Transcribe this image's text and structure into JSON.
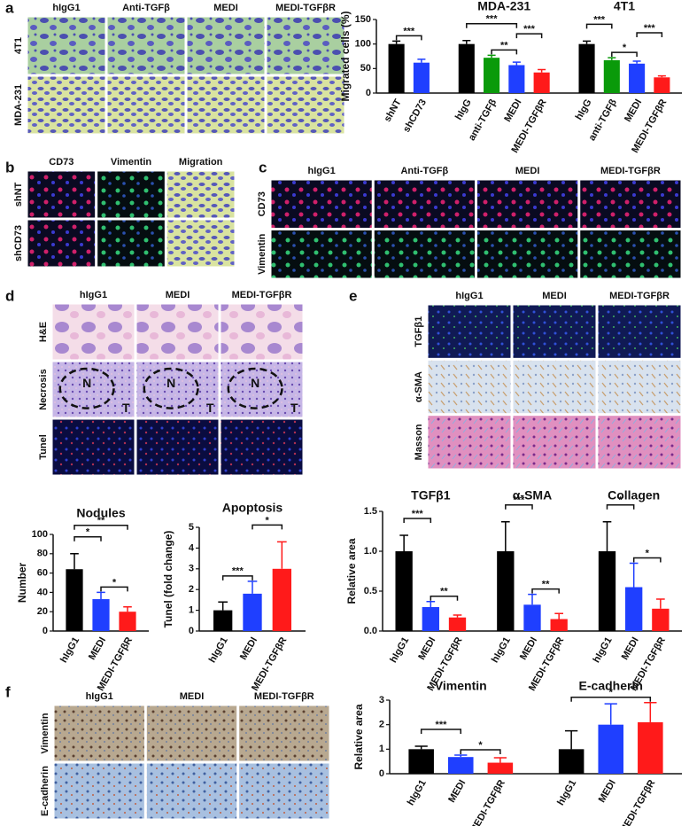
{
  "panel_letters": [
    "a",
    "b",
    "c",
    "d",
    "e",
    "f"
  ],
  "image_panels": [
    {
      "columns": [
        "hIgG1",
        "Anti-TGFβ",
        "MEDI",
        "MEDI-TGFβR"
      ],
      "rows": [
        "4T1",
        "MDA-231"
      ]
    },
    {
      "columns": [
        "CD73",
        "Vimentin",
        "Migration"
      ],
      "rows": [
        "shNT",
        "shCD73"
      ]
    },
    {
      "columns": [
        "hIgG1",
        "Anti-TGFβ",
        "MEDI",
        "MEDI-TGFβR"
      ],
      "rows": [
        "CD73",
        "Vimentin"
      ]
    },
    {
      "columns": [
        "hIgG1",
        "MEDI",
        "MEDI-TGFβR"
      ],
      "rows": [
        "H&E",
        "Necrosis",
        "Tunel"
      ],
      "marks": [
        "N",
        "T"
      ]
    },
    {
      "columns": [
        "hIgG1",
        "MEDI",
        "MEDI-TGFβR"
      ],
      "rows": [
        "TGFβ1",
        "α-SMA",
        "Masson"
      ]
    },
    {
      "columns": [
        "hIgG1",
        "MEDI",
        "MEDI-TGFβR"
      ],
      "rows": [
        "Vimentin",
        "E-cadherin"
      ]
    }
  ],
  "chart_data": [
    {
      "type": "bar",
      "y_label": "Migrated cells (%)",
      "ylim": [
        0,
        150
      ],
      "yticks": [
        0,
        50,
        100,
        150
      ],
      "groups": [
        {
          "categories": [
            "shNT",
            "shCD73"
          ],
          "values": [
            100,
            62
          ],
          "errors": [
            6,
            7
          ],
          "colors": [
            "#000000",
            "#1f3fff"
          ],
          "annotations": [
            "***"
          ]
        },
        {
          "title": "MDA-231",
          "categories": [
            "hIgG",
            "anti-TGFβ",
            "MEDI",
            "MEDI-TGFβR"
          ],
          "values": [
            100,
            72,
            57,
            42
          ],
          "errors": [
            7,
            5,
            6,
            6
          ],
          "colors": [
            "#000000",
            "#0a9a0a",
            "#1f3fff",
            "#ff1a1a"
          ],
          "annotations": [
            "***",
            "**",
            "***"
          ]
        },
        {
          "title": "4T1",
          "categories": [
            "hIgG",
            "anti-TGFβ",
            "MEDI",
            "MEDI-TGFβR"
          ],
          "values": [
            100,
            67,
            60,
            32
          ],
          "errors": [
            6,
            5,
            5,
            3
          ],
          "colors": [
            "#000000",
            "#0a9a0a",
            "#1f3fff",
            "#ff1a1a"
          ],
          "annotations": [
            "***",
            "*",
            "***"
          ]
        }
      ]
    },
    {
      "type": "bar",
      "y_label": "Number",
      "ylim": [
        0,
        100
      ],
      "yticks": [
        0,
        20,
        40,
        60,
        80,
        100
      ],
      "groups": [
        {
          "title": "Nodules",
          "categories": [
            "hIgG1",
            "MEDI",
            "MEDI-TGFβR"
          ],
          "values": [
            64,
            33,
            20
          ],
          "errors": [
            16,
            7,
            5
          ],
          "colors": [
            "#000000",
            "#1f3fff",
            "#ff1a1a"
          ],
          "annotations": [
            "**",
            "*",
            "*"
          ]
        }
      ]
    },
    {
      "type": "bar",
      "y_label": "Tunel (fold change)",
      "ylim": [
        0,
        5
      ],
      "yticks": [
        0,
        1,
        2,
        3,
        4,
        5
      ],
      "groups": [
        {
          "title": "Apoptosis",
          "categories": [
            "hIgG1",
            "MEDI",
            "MEDI-TGFβR"
          ],
          "values": [
            1.0,
            1.8,
            3.0
          ],
          "errors": [
            0.4,
            0.6,
            1.3
          ],
          "colors": [
            "#000000",
            "#1f3fff",
            "#ff1a1a"
          ],
          "annotations": [
            "***",
            "*"
          ]
        }
      ]
    },
    {
      "type": "bar",
      "y_label": "Relative area",
      "ylim": [
        0,
        1.5
      ],
      "yticks": [
        {
          "value": 0,
          "label": "0.0"
        },
        0.5,
        {
          "value": 1,
          "label": "1.0"
        },
        1.5
      ],
      "groups": [
        {
          "title": "TGFβ1",
          "categories": [
            "hIgG1",
            "MEDI",
            "MEDI-TGFβR"
          ],
          "values": [
            1.0,
            0.3,
            0.17
          ],
          "errors": [
            0.2,
            0.07,
            0.03
          ],
          "colors": [
            "#000000",
            "#1f3fff",
            "#ff1a1a"
          ],
          "annotations": [
            "***",
            "**"
          ]
        },
        {
          "title": "α-SMA",
          "categories": [
            "hIgG1",
            "MEDI",
            "MEDI-TGFβR"
          ],
          "values": [
            1.0,
            0.33,
            0.15
          ],
          "errors": [
            0.37,
            0.13,
            0.07
          ],
          "colors": [
            "#000000",
            "#1f3fff",
            "#ff1a1a"
          ],
          "annotations": [
            "***",
            "**"
          ]
        },
        {
          "title": "Collagen",
          "categories": [
            "hIgG1",
            "MEDI",
            "MEDI-TGFβR"
          ],
          "values": [
            1.0,
            0.55,
            0.28
          ],
          "errors": [
            0.37,
            0.3,
            0.12
          ],
          "colors": [
            "#000000",
            "#1f3fff",
            "#ff1a1a"
          ],
          "annotations": [
            "*",
            "*"
          ]
        }
      ]
    },
    {
      "type": "bar",
      "y_label": "Relative area",
      "ylim": [
        0,
        3
      ],
      "yticks": [
        0,
        1,
        2,
        3
      ],
      "groups": [
        {
          "title": "Vimentin",
          "categories": [
            "hIgG1",
            "MEDI",
            "MEDI-TGFβR"
          ],
          "values": [
            1.0,
            0.68,
            0.45
          ],
          "errors": [
            0.12,
            0.08,
            0.2
          ],
          "colors": [
            "#000000",
            "#1f3fff",
            "#ff1a1a"
          ],
          "annotations": [
            "***",
            "*"
          ]
        },
        {
          "title": "E-cadherin",
          "categories": [
            "hIgG1",
            "MEDI",
            "MEDI-TGFβR"
          ],
          "values": [
            1.0,
            2.0,
            2.1
          ],
          "errors": [
            0.75,
            0.85,
            0.8
          ],
          "colors": [
            "#000000",
            "#1f3fff",
            "#ff1a1a"
          ],
          "annotations": [
            "*"
          ]
        }
      ]
    }
  ]
}
